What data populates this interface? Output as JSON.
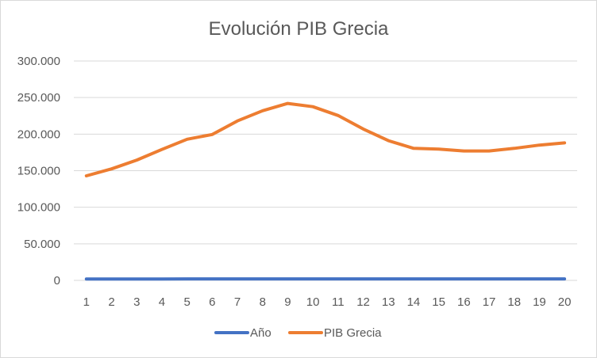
{
  "chart_data": {
    "type": "line",
    "title": "Evolución PIB Grecia",
    "x": [
      "1",
      "2",
      "3",
      "4",
      "5",
      "6",
      "7",
      "8",
      "9",
      "10",
      "11",
      "12",
      "13",
      "14",
      "15",
      "16",
      "17",
      "18",
      "19",
      "20"
    ],
    "ylim": [
      0,
      300000
    ],
    "yticks": [
      0,
      50000,
      100000,
      150000,
      200000,
      250000,
      300000
    ],
    "ytick_labels": [
      "0",
      "50.000",
      "100.000",
      "150.000",
      "200.000",
      "250.000",
      "300.000"
    ],
    "grid": true,
    "legend_position": "bottom",
    "series": [
      {
        "name": "Año",
        "color": "#4472c4",
        "values": [
          2000,
          2001,
          2002,
          2003,
          2004,
          2005,
          2006,
          2007,
          2008,
          2009,
          2010,
          2011,
          2012,
          2013,
          2014,
          2015,
          2016,
          2017,
          2018,
          2019
        ]
      },
      {
        "name": "PIB Grecia",
        "color": "#ed7d31",
        "values": [
          143000,
          152500,
          164500,
          179000,
          193000,
          199500,
          218000,
          232000,
          242000,
          237500,
          225500,
          207000,
          191000,
          180500,
          179500,
          177000,
          177000,
          180500,
          185000,
          188000
        ]
      }
    ]
  }
}
